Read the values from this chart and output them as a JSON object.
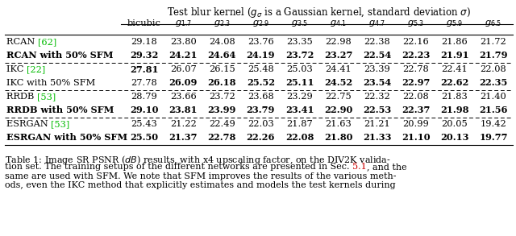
{
  "header_main": "Test blur kernel ($g_{\\sigma}$ is a Gaussian kernel, standard deviation $\\sigma$)",
  "col_headers": [
    "bicubic",
    "$g_{1.7}$",
    "$g_{2.3}$",
    "$g_{2.9}$",
    "$g_{3.5}$",
    "$g_{4.1}$",
    "$g_{4.7}$",
    "$g_{5.3}$",
    "$g_{5.9}$",
    "$g_{6.5}$"
  ],
  "rows": [
    {
      "label": "RCAN [62]",
      "has_ref": true,
      "base": "RCAN ",
      "ref": "[62]",
      "bold_label": false,
      "values": [
        "29.18",
        "23.80",
        "24.08",
        "23.76",
        "23.35",
        "22.98",
        "22.38",
        "22.16",
        "21.86",
        "21.72"
      ],
      "bold_vals": [
        false,
        false,
        false,
        false,
        false,
        false,
        false,
        false,
        false,
        false
      ]
    },
    {
      "label": "RCAN with 50% SFM",
      "has_ref": false,
      "bold_label": true,
      "values": [
        "29.32",
        "24.21",
        "24.64",
        "24.19",
        "23.72",
        "23.27",
        "22.54",
        "22.23",
        "21.91",
        "21.79"
      ],
      "bold_vals": [
        true,
        true,
        true,
        true,
        true,
        true,
        true,
        true,
        true,
        true
      ]
    },
    {
      "label": "IKC [22]",
      "has_ref": true,
      "base": "IKC ",
      "ref": "[22]",
      "bold_label": false,
      "values": [
        "27.81",
        "26.07",
        "26.15",
        "25.48",
        "25.03",
        "24.41",
        "23.39",
        "22.78",
        "22.41",
        "22.08"
      ],
      "bold_vals": [
        true,
        false,
        false,
        false,
        false,
        false,
        false,
        false,
        false,
        false
      ]
    },
    {
      "label": "IKC with 50% SFM",
      "has_ref": false,
      "bold_label": false,
      "values": [
        "27.78",
        "26.09",
        "26.18",
        "25.52",
        "25.11",
        "24.52",
        "23.54",
        "22.97",
        "22.62",
        "22.35"
      ],
      "bold_vals": [
        false,
        true,
        true,
        true,
        true,
        true,
        true,
        true,
        true,
        true
      ]
    },
    {
      "label": "RRDB [53]",
      "has_ref": true,
      "base": "RRDB ",
      "ref": "[53]",
      "bold_label": false,
      "values": [
        "28.79",
        "23.66",
        "23.72",
        "23.68",
        "23.29",
        "22.75",
        "22.32",
        "22.08",
        "21.83",
        "21.40"
      ],
      "bold_vals": [
        false,
        false,
        false,
        false,
        false,
        false,
        false,
        false,
        false,
        false
      ]
    },
    {
      "label": "RRDB with 50% SFM",
      "has_ref": false,
      "bold_label": true,
      "values": [
        "29.10",
        "23.81",
        "23.99",
        "23.79",
        "23.41",
        "22.90",
        "22.53",
        "22.37",
        "21.98",
        "21.56"
      ],
      "bold_vals": [
        true,
        true,
        true,
        true,
        true,
        true,
        true,
        true,
        true,
        true
      ]
    },
    {
      "label": "ESRGAN [53]",
      "has_ref": true,
      "base": "ESRGAN ",
      "ref": "[53]",
      "bold_label": false,
      "values": [
        "25.43",
        "21.22",
        "22.49",
        "22.03",
        "21.87",
        "21.63",
        "21.21",
        "20.99",
        "20.05",
        "19.42"
      ],
      "bold_vals": [
        false,
        false,
        false,
        false,
        false,
        false,
        false,
        false,
        false,
        false
      ]
    },
    {
      "label": "ESRGAN with 50% SFM",
      "has_ref": false,
      "bold_label": true,
      "values": [
        "25.50",
        "21.37",
        "22.78",
        "22.26",
        "22.08",
        "21.80",
        "21.33",
        "21.10",
        "20.13",
        "19.77"
      ],
      "bold_vals": [
        true,
        true,
        true,
        true,
        true,
        true,
        true,
        true,
        true,
        true
      ]
    }
  ],
  "dashed_after_rows": [
    1,
    3,
    5
  ],
  "ref_color": "#00bb00",
  "caption_ref_color": "#cc0000",
  "caption_lines": [
    "Table 1: Image SR PSNR ($dB$) results, with x4 upscaling factor, on the DIV2K valida-",
    "tion set. The training setups of the different networks are presented in Sec. 5.1, and the",
    "same are used with SFM. We note that SFM improves the results of the various meth-",
    "ods, even the IKC method that explicitly estimates and models the test kernels during"
  ],
  "sec51_line": 1,
  "sec51_prefix": "tion set. The training setups of the different networks are presented in Sec. ",
  "sec51_text": "5.1",
  "sec51_suffix": ", and the"
}
